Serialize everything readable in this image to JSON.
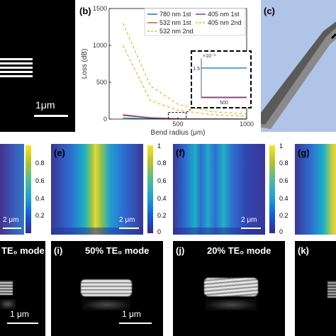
{
  "panels": {
    "a": {
      "scale_bar": "1μm"
    },
    "b": {
      "label": "(b)"
    },
    "c": {
      "label": "(c)"
    },
    "e": {
      "label": "(e)",
      "scale_bar": "2 μm"
    },
    "f": {
      "label": "(f)",
      "scale_bar": "2 μm"
    },
    "g": {
      "label": "(g)"
    },
    "d_partial": {
      "scale_bar": "2 μm"
    },
    "h_partial": {
      "mode_text": "TE₀ mode",
      "scale_bar": "1 μm"
    },
    "i": {
      "label": "(i)",
      "mode_text": "50% TE₀ mode",
      "scale_bar": "1 μm"
    },
    "j": {
      "label": "(j)",
      "mode_text": "20% TE₀ mode",
      "scale_bar": "1 μm"
    },
    "k": {
      "label": "(k)"
    }
  },
  "colorbar": {
    "ticks": [
      "1",
      "0.8",
      "0.6",
      "0.4",
      "0.2",
      "0"
    ],
    "ticks_partial": [
      "0.8",
      "0.6",
      "0.4",
      "0.2"
    ]
  },
  "chart_data": {
    "type": "line",
    "xlabel": "Bend radius (μm)",
    "ylabel": "Loss (dB)",
    "xlim": [
      0,
      1000
    ],
    "ylim": [
      0,
      1500
    ],
    "xticks": [
      "500",
      "1000"
    ],
    "yticks": [
      "0",
      "500",
      "1000",
      "1500"
    ],
    "legend": "top",
    "series": [
      {
        "name": "780 nm 1st",
        "color": "#0072bd",
        "style": "solid",
        "x": [
          100,
          300,
          500,
          750,
          1000
        ],
        "y": [
          15,
          5,
          2,
          1,
          0.5
        ]
      },
      {
        "name": "532 nm 1st",
        "color": "#d95319",
        "style": "solid",
        "x": [
          100,
          300,
          500,
          750,
          1000
        ],
        "y": [
          60,
          20,
          5,
          2,
          1
        ]
      },
      {
        "name": "405 nm 1st",
        "color": "#7e2f8e",
        "style": "solid",
        "x": [
          100,
          300,
          500,
          750,
          1000
        ],
        "y": [
          50,
          15,
          3,
          1,
          0.5
        ]
      },
      {
        "name": "405 nm 2nd",
        "color": "#edb120",
        "style": "dashed",
        "x": [
          100,
          300,
          500,
          750,
          1000
        ],
        "y": [
          1000,
          250,
          120,
          60,
          40
        ]
      },
      {
        "name": "532 nm 2nd",
        "color": "#c8c832",
        "style": "dashed",
        "x": [
          100,
          300,
          500,
          750,
          1000
        ],
        "y": [
          1300,
          450,
          200,
          100,
          70
        ]
      }
    ],
    "inset": {
      "exponent": "×10⁻³",
      "ytick": "1.5",
      "xtick": "500",
      "xlim": [
        450,
        550
      ],
      "ylim": [
        0,
        2
      ],
      "series": [
        {
          "name": "780 nm 1st",
          "color": "#0072bd",
          "x": [
            450,
            550
          ],
          "y": [
            1.5,
            1.5
          ]
        },
        {
          "name": "532 nm 1st",
          "color": "#d95319",
          "x": [
            450,
            550
          ],
          "y": [
            0.02,
            0.02
          ]
        },
        {
          "name": "405 nm 1st",
          "color": "#7e2f8e",
          "x": [
            450,
            550
          ],
          "y": [
            0.03,
            0.03
          ]
        }
      ]
    }
  }
}
